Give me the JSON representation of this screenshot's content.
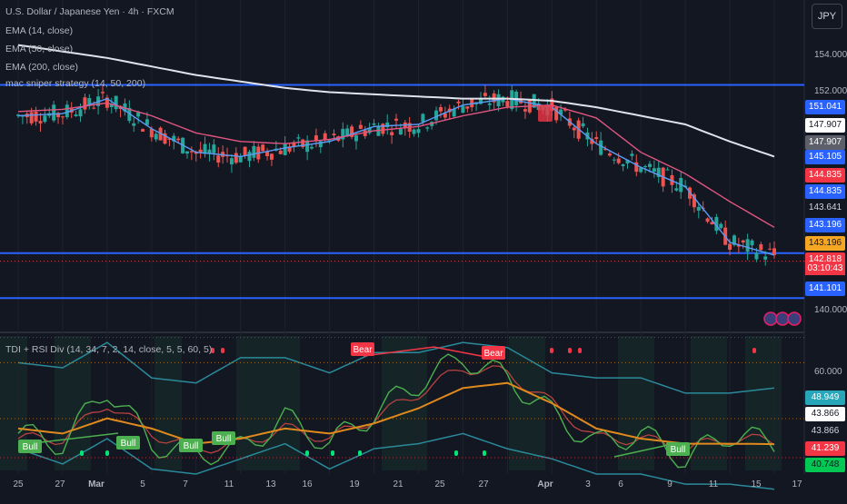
{
  "header": {
    "title": "U.S. Dollar / Japanese Yen · 4h · FXCM",
    "indicators": [
      "EMA (14, close)",
      "EMA (50, close)",
      "EMA (200, close)",
      "mac sniper strategy (14, 50, 200)"
    ],
    "currency_button": "JPY"
  },
  "oscillator": {
    "title": "TDI + RSI Div (14, 34, 7, 2, 14, close, 5, 5, 60, 5)"
  },
  "price_axis": {
    "labels": [
      "154.000",
      "152.000",
      "140.000"
    ]
  },
  "osc_axis": {
    "labels": [
      "60.000"
    ]
  },
  "price_tags": [
    {
      "text": "151.041",
      "bg": "#2962ff",
      "fg": "#ffffff",
      "price": 151.041
    },
    {
      "text": "147.907",
      "bg": "#ffffff",
      "fg": "#131722",
      "price": 147.907
    },
    {
      "text": "147.907",
      "bg": "#5d606b",
      "fg": "#ffffff",
      "price": 147.907
    },
    {
      "text": "145.105",
      "bg": "#2962ff",
      "fg": "#ffffff",
      "price": 145.105
    },
    {
      "text": "144.835",
      "bg": "#f23645",
      "fg": "#ffffff",
      "price": 144.835
    },
    {
      "text": "144.835",
      "bg": "#2962ff",
      "fg": "#ffffff",
      "price": 144.835
    },
    {
      "text": "143.641",
      "bg": "#131722",
      "fg": "#d1d4dc",
      "price": 143.641
    },
    {
      "text": "143.196",
      "bg": "#2962ff",
      "fg": "#ffffff",
      "price": 143.196
    },
    {
      "text": "143.196",
      "bg": "#f5a623",
      "fg": "#131722",
      "price": 143.196
    },
    {
      "text": "142.818",
      "bg": "#f23645",
      "fg": "#ffffff",
      "price": 142.818
    },
    {
      "text": "141.101",
      "bg": "#2962ff",
      "fg": "#ffffff",
      "price": 141.101
    }
  ],
  "countdown": "03:10:43",
  "osc_tags": [
    {
      "text": "48.949",
      "bg": "#26a6b8",
      "fg": "#ffffff",
      "value": 48.949
    },
    {
      "text": "43.866",
      "bg": "#ffffff",
      "fg": "#131722",
      "value": 43.866
    },
    {
      "text": "43.866",
      "bg": "#131722",
      "fg": "#d1d4dc",
      "value": 43.866
    },
    {
      "text": "41.239",
      "bg": "#f23645",
      "fg": "#ffffff",
      "value": 41.239
    },
    {
      "text": "40.748",
      "bg": "#00c853",
      "fg": "#131722",
      "value": 40.748
    }
  ],
  "dates": [
    "25",
    "27",
    "Mar",
    "5",
    "7",
    "11",
    "13",
    "16",
    "19",
    "21",
    "25",
    "27",
    "Apr",
    "3",
    "6",
    "9",
    "11",
    "15",
    "17"
  ],
  "markers": {
    "bear": "Bear",
    "bull": "Bull"
  },
  "chart_data": {
    "type": "line",
    "title": "U.S. Dollar / Japanese Yen · 4h · FXCM",
    "x": [
      "25",
      "27",
      "Mar",
      "5",
      "7",
      "11",
      "13",
      "16",
      "19",
      "21",
      "25",
      "27",
      "Apr",
      "3",
      "6",
      "9",
      "11",
      "15"
    ],
    "series": [
      {
        "name": "EMA (14, close)",
        "values": [
          149.6,
          149.7,
          150.4,
          149.0,
          147.9,
          147.7,
          148.1,
          148.4,
          149.1,
          149.2,
          150.1,
          150.4,
          150.0,
          148.3,
          147.2,
          146.3,
          143.7,
          143.1
        ]
      },
      {
        "name": "EMA (50, close)",
        "values": [
          149.8,
          149.9,
          150.2,
          149.6,
          148.8,
          148.4,
          148.3,
          148.5,
          148.9,
          149.1,
          149.6,
          150.0,
          150.1,
          149.5,
          147.9,
          146.9,
          145.6,
          144.4
        ]
      },
      {
        "name": "EMA (200, close)",
        "values": [
          152.9,
          152.6,
          152.3,
          151.9,
          151.5,
          151.2,
          150.9,
          150.7,
          150.6,
          150.5,
          150.4,
          150.4,
          150.3,
          150.0,
          149.6,
          149.2,
          148.4,
          147.7
        ]
      }
    ],
    "horizontal_levels": [
      151.041,
      145.105,
      144.835,
      143.196,
      141.101
    ],
    "ylim": [
      139.5,
      155.0
    ],
    "oscillator_ylim": [
      38,
      66
    ],
    "oscillator_levels": [
      60.0
    ]
  }
}
